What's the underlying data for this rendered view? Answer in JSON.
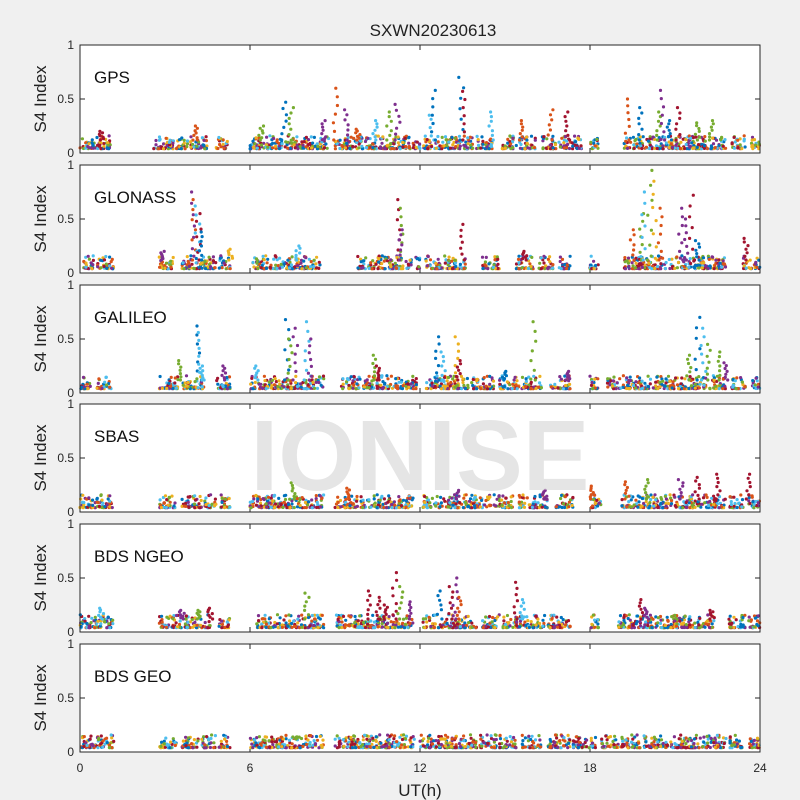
{
  "chart_data": {
    "type": "scatter",
    "title": "SXWN20230613",
    "xlabel": "UT(h)",
    "ylabel": "S4 Index",
    "xlim": [
      0,
      24
    ],
    "ylim": [
      0,
      1
    ],
    "xticks": [
      "0",
      "6",
      "12",
      "18",
      "24"
    ],
    "yticks": [
      "0",
      "0.5",
      "1"
    ],
    "watermark": "IONISE",
    "series_colors": [
      "#0072bd",
      "#d95319",
      "#edb120",
      "#7e2f8e",
      "#77ac30",
      "#4dbeee",
      "#a2142f"
    ],
    "panels": [
      {
        "name": "GPS",
        "segments": [
          [
            0.0,
            0.5
          ],
          [
            0.55,
            1.15
          ],
          [
            2.6,
            3.3
          ],
          [
            3.4,
            3.8
          ],
          [
            3.9,
            4.5
          ],
          [
            4.8,
            5.2
          ],
          [
            6.0,
            8.8
          ],
          [
            9.0,
            12.0
          ],
          [
            12.1,
            13.9
          ],
          [
            14.0,
            14.6
          ],
          [
            14.9,
            15.4
          ],
          [
            15.5,
            16.1
          ],
          [
            16.3,
            16.8
          ],
          [
            16.9,
            17.7
          ],
          [
            18.0,
            18.3
          ],
          [
            19.2,
            22.8
          ],
          [
            23.0,
            23.5
          ],
          [
            23.7,
            24.0
          ]
        ],
        "peaks": [
          [
            0.75,
            0.2
          ],
          [
            4.1,
            0.25
          ],
          [
            6.4,
            0.25
          ],
          [
            7.2,
            0.47
          ],
          [
            7.45,
            0.42
          ],
          [
            8.6,
            0.3
          ],
          [
            9.0,
            0.6
          ],
          [
            9.4,
            0.4
          ],
          [
            9.8,
            0.22
          ],
          [
            10.4,
            0.3
          ],
          [
            10.9,
            0.38
          ],
          [
            11.2,
            0.45
          ],
          [
            12.4,
            0.35
          ],
          [
            12.5,
            0.58
          ],
          [
            13.45,
            0.7
          ],
          [
            13.5,
            0.57
          ],
          [
            14.5,
            0.38
          ],
          [
            15.6,
            0.3
          ],
          [
            16.6,
            0.4
          ],
          [
            17.2,
            0.38
          ],
          [
            19.3,
            0.5
          ],
          [
            19.8,
            0.42
          ],
          [
            20.4,
            0.38
          ],
          [
            20.55,
            0.58
          ],
          [
            20.8,
            0.3
          ],
          [
            21.1,
            0.42
          ],
          [
            21.8,
            0.28
          ],
          [
            22.3,
            0.3
          ]
        ]
      },
      {
        "name": "GLONASS",
        "segments": [
          [
            0.1,
            0.5
          ],
          [
            0.6,
            1.2
          ],
          [
            2.8,
            3.3
          ],
          [
            3.6,
            4.8
          ],
          [
            4.9,
            5.3
          ],
          [
            6.1,
            7.0
          ],
          [
            7.0,
            8.5
          ],
          [
            9.8,
            11.4
          ],
          [
            11.5,
            11.7
          ],
          [
            11.85,
            12.0
          ],
          [
            12.2,
            13.6
          ],
          [
            14.2,
            14.8
          ],
          [
            15.4,
            16.0
          ],
          [
            16.2,
            16.7
          ],
          [
            16.9,
            17.3
          ],
          [
            18.0,
            18.3
          ],
          [
            19.2,
            22.8
          ],
          [
            23.4,
            23.7
          ],
          [
            23.8,
            24.0
          ]
        ],
        "peaks": [
          [
            2.9,
            0.2
          ],
          [
            3.95,
            0.75
          ],
          [
            4.0,
            0.68
          ],
          [
            4.15,
            0.62
          ],
          [
            4.2,
            0.55
          ],
          [
            4.25,
            0.38
          ],
          [
            5.3,
            0.22
          ],
          [
            7.7,
            0.25
          ],
          [
            11.2,
            0.68
          ],
          [
            11.35,
            0.6
          ],
          [
            11.3,
            0.4
          ],
          [
            13.5,
            0.45
          ],
          [
            15.7,
            0.2
          ],
          [
            19.5,
            0.4
          ],
          [
            19.8,
            0.55
          ],
          [
            19.9,
            0.75
          ],
          [
            20.1,
            0.95
          ],
          [
            20.3,
            0.85
          ],
          [
            20.5,
            0.6
          ],
          [
            21.2,
            0.6
          ],
          [
            21.4,
            0.5
          ],
          [
            21.6,
            0.72
          ],
          [
            21.8,
            0.3
          ],
          [
            23.5,
            0.32
          ]
        ]
      },
      {
        "name": "GALILEO",
        "segments": [
          [
            0.0,
            0.4
          ],
          [
            0.6,
            1.1
          ],
          [
            2.8,
            3.5
          ],
          [
            3.6,
            4.4
          ],
          [
            4.8,
            5.3
          ],
          [
            6.0,
            8.6
          ],
          [
            9.2,
            10.6
          ],
          [
            10.6,
            11.9
          ],
          [
            12.2,
            13.7
          ],
          [
            13.8,
            14.6
          ],
          [
            14.8,
            15.5
          ],
          [
            15.6,
            16.3
          ],
          [
            16.6,
            17.3
          ],
          [
            18.0,
            18.3
          ],
          [
            18.6,
            19.8
          ],
          [
            19.8,
            21.0
          ],
          [
            21.0,
            22.1
          ],
          [
            22.2,
            22.8
          ],
          [
            23.0,
            23.5
          ],
          [
            23.7,
            24.0
          ]
        ],
        "peaks": [
          [
            3.5,
            0.3
          ],
          [
            4.2,
            0.62
          ],
          [
            4.25,
            0.56
          ],
          [
            4.3,
            0.25
          ],
          [
            5.05,
            0.25
          ],
          [
            6.2,
            0.25
          ],
          [
            7.3,
            0.68
          ],
          [
            7.4,
            0.5
          ],
          [
            7.6,
            0.6
          ],
          [
            8.0,
            0.66
          ],
          [
            8.1,
            0.5
          ],
          [
            10.4,
            0.35
          ],
          [
            10.5,
            0.25
          ],
          [
            12.6,
            0.52
          ],
          [
            12.8,
            0.38
          ],
          [
            13.3,
            0.52
          ],
          [
            13.35,
            0.3
          ],
          [
            15.0,
            0.2
          ],
          [
            16.0,
            0.66
          ],
          [
            17.2,
            0.2
          ],
          [
            21.5,
            0.35
          ],
          [
            21.8,
            0.7
          ],
          [
            22.0,
            0.6
          ],
          [
            22.2,
            0.45
          ],
          [
            22.6,
            0.38
          ],
          [
            22.8,
            0.28
          ]
        ]
      },
      {
        "name": "SBAS",
        "segments": [
          [
            0.0,
            0.6
          ],
          [
            0.6,
            1.2
          ],
          [
            2.8,
            3.4
          ],
          [
            3.6,
            4.3
          ],
          [
            4.4,
            4.8
          ],
          [
            4.9,
            5.3
          ],
          [
            6.0,
            8.6
          ],
          [
            9.0,
            9.8
          ],
          [
            9.9,
            11.8
          ],
          [
            12.1,
            13.4
          ],
          [
            13.4,
            14.5
          ],
          [
            14.6,
            15.3
          ],
          [
            15.5,
            16.5
          ],
          [
            16.8,
            17.4
          ],
          [
            18.0,
            18.4
          ],
          [
            19.1,
            20.5
          ],
          [
            20.5,
            22.8
          ],
          [
            22.9,
            23.4
          ],
          [
            23.6,
            24.0
          ]
        ],
        "peaks": [
          [
            7.5,
            0.27
          ],
          [
            9.5,
            0.22
          ],
          [
            13.3,
            0.2
          ],
          [
            16.4,
            0.2
          ],
          [
            18.1,
            0.24
          ],
          [
            19.3,
            0.28
          ],
          [
            20.0,
            0.3
          ],
          [
            21.2,
            0.3
          ],
          [
            21.8,
            0.32
          ],
          [
            22.5,
            0.35
          ],
          [
            23.6,
            0.35
          ]
        ]
      },
      {
        "name": "BDS NGEO",
        "segments": [
          [
            0.0,
            0.5
          ],
          [
            0.5,
            1.2
          ],
          [
            2.8,
            3.4
          ],
          [
            3.4,
            3.6
          ],
          [
            3.7,
            4.6
          ],
          [
            4.9,
            5.3
          ],
          [
            6.2,
            8.6
          ],
          [
            9.0,
            11.8
          ],
          [
            12.1,
            14.0
          ],
          [
            14.2,
            14.8
          ],
          [
            14.9,
            15.4
          ],
          [
            15.4,
            16.4
          ],
          [
            16.5,
            17.3
          ],
          [
            18.0,
            18.3
          ],
          [
            19.0,
            20.8
          ],
          [
            20.8,
            22.4
          ],
          [
            22.9,
            23.5
          ],
          [
            23.6,
            24.0
          ]
        ],
        "peaks": [
          [
            0.75,
            0.22
          ],
          [
            3.6,
            0.2
          ],
          [
            4.2,
            0.2
          ],
          [
            4.6,
            0.22
          ],
          [
            8.0,
            0.36
          ],
          [
            10.2,
            0.38
          ],
          [
            10.5,
            0.32
          ],
          [
            10.8,
            0.25
          ],
          [
            11.1,
            0.55
          ],
          [
            11.3,
            0.42
          ],
          [
            11.6,
            0.28
          ],
          [
            12.7,
            0.38
          ],
          [
            13.1,
            0.42
          ],
          [
            13.25,
            0.5
          ],
          [
            13.4,
            0.32
          ],
          [
            15.4,
            0.46
          ],
          [
            15.6,
            0.3
          ],
          [
            19.8,
            0.3
          ],
          [
            20.0,
            0.22
          ],
          [
            22.3,
            0.2
          ]
        ]
      },
      {
        "name": "BDS GEO",
        "segments": [
          [
            0.0,
            0.6
          ],
          [
            0.6,
            1.2
          ],
          [
            2.8,
            3.4
          ],
          [
            3.6,
            4.2
          ],
          [
            4.3,
            4.8
          ],
          [
            4.9,
            5.3
          ],
          [
            6.0,
            8.6
          ],
          [
            9.0,
            11.8
          ],
          [
            12.0,
            14.0
          ],
          [
            14.1,
            14.7
          ],
          [
            14.8,
            15.4
          ],
          [
            15.6,
            16.3
          ],
          [
            16.5,
            17.3
          ],
          [
            17.4,
            18.2
          ],
          [
            18.4,
            19.0
          ],
          [
            19.1,
            19.8
          ],
          [
            19.9,
            22.8
          ],
          [
            22.9,
            23.4
          ],
          [
            23.6,
            24.0
          ]
        ],
        "peaks": [
          [
            7.6,
            0.14
          ],
          [
            12.8,
            0.12
          ]
        ]
      }
    ]
  }
}
